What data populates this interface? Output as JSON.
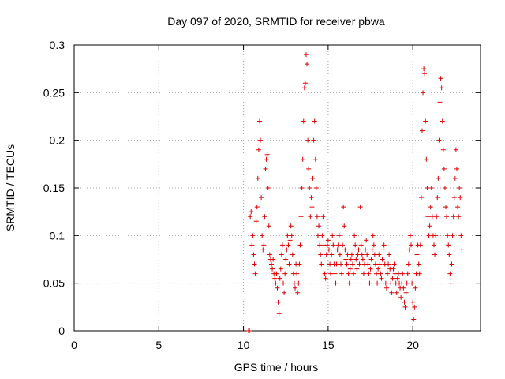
{
  "chart_data": {
    "type": "scatter",
    "title": "Day 097 of 2020, SRMTID for receiver pbwa",
    "xlabel": "GPS time / hours",
    "ylabel": "SRMTID / TECUs",
    "xlim": [
      0,
      24
    ],
    "ylim": [
      0,
      0.3
    ],
    "xticks": [
      0,
      5,
      10,
      15,
      20
    ],
    "xtick_labels": [
      "0",
      "5",
      "10",
      "15",
      "20"
    ],
    "yticks": [
      0,
      0.05,
      0.1,
      0.15,
      0.2,
      0.25,
      0.3
    ],
    "ytick_labels": [
      "0",
      "0.05",
      "0.1",
      "0.15",
      "0.2",
      "0.25",
      "0.3"
    ],
    "grid": true,
    "marker": "+",
    "color": "#e00000",
    "series": [
      {
        "name": "SRMTID",
        "points": [
          [
            10.3,
            0.0
          ],
          [
            10.35,
            0.0
          ],
          [
            10.4,
            0.12
          ],
          [
            10.45,
            0.125
          ],
          [
            10.5,
            0.09
          ],
          [
            10.55,
            0.1
          ],
          [
            10.6,
            0.08
          ],
          [
            10.65,
            0.07
          ],
          [
            10.7,
            0.06
          ],
          [
            10.75,
            0.115
          ],
          [
            10.8,
            0.13
          ],
          [
            10.85,
            0.16
          ],
          [
            10.9,
            0.19
          ],
          [
            10.95,
            0.22
          ],
          [
            11.0,
            0.2
          ],
          [
            11.05,
            0.14
          ],
          [
            11.1,
            0.1
          ],
          [
            11.15,
            0.085
          ],
          [
            11.2,
            0.09
          ],
          [
            11.25,
            0.12
          ],
          [
            11.3,
            0.17
          ],
          [
            11.35,
            0.18
          ],
          [
            11.4,
            0.185
          ],
          [
            11.45,
            0.15
          ],
          [
            11.5,
            0.11
          ],
          [
            11.55,
            0.08
          ],
          [
            11.6,
            0.075
          ],
          [
            11.65,
            0.07
          ],
          [
            11.7,
            0.065
          ],
          [
            11.75,
            0.075
          ],
          [
            11.8,
            0.06
          ],
          [
            11.85,
            0.055
          ],
          [
            11.9,
            0.05
          ],
          [
            11.95,
            0.06
          ],
          [
            12.0,
            0.045
          ],
          [
            12.05,
            0.03
          ],
          [
            12.1,
            0.018
          ],
          [
            12.15,
            0.055
          ],
          [
            12.2,
            0.065
          ],
          [
            12.25,
            0.08
          ],
          [
            12.3,
            0.09
          ],
          [
            12.35,
            0.05
          ],
          [
            12.4,
            0.04
          ],
          [
            12.45,
            0.06
          ],
          [
            12.5,
            0.075
          ],
          [
            12.55,
            0.085
          ],
          [
            12.6,
            0.1
          ],
          [
            12.65,
            0.09
          ],
          [
            12.7,
            0.07
          ],
          [
            12.75,
            0.095
          ],
          [
            12.8,
            0.11
          ],
          [
            12.85,
            0.1
          ],
          [
            12.9,
            0.08
          ],
          [
            12.95,
            0.06
          ],
          [
            13.0,
            0.05
          ],
          [
            13.05,
            0.045
          ],
          [
            13.1,
            0.07
          ],
          [
            13.15,
            0.06
          ],
          [
            13.2,
            0.04
          ],
          [
            13.25,
            0.05
          ],
          [
            13.3,
            0.07
          ],
          [
            13.35,
            0.09
          ],
          [
            13.4,
            0.12
          ],
          [
            13.45,
            0.15
          ],
          [
            13.5,
            0.18
          ],
          [
            13.55,
            0.22
          ],
          [
            13.6,
            0.255
          ],
          [
            13.65,
            0.26
          ],
          [
            13.7,
            0.29
          ],
          [
            13.75,
            0.28
          ],
          [
            13.8,
            0.2
          ],
          [
            13.85,
            0.17
          ],
          [
            13.9,
            0.15
          ],
          [
            13.95,
            0.12
          ],
          [
            14.0,
            0.14
          ],
          [
            14.05,
            0.13
          ],
          [
            14.1,
            0.16
          ],
          [
            14.15,
            0.2
          ],
          [
            14.2,
            0.22
          ],
          [
            14.25,
            0.18
          ],
          [
            14.3,
            0.15
          ],
          [
            14.35,
            0.12
          ],
          [
            14.4,
            0.1
          ],
          [
            14.45,
            0.11
          ],
          [
            14.5,
            0.09
          ],
          [
            14.55,
            0.08
          ],
          [
            14.6,
            0.07
          ],
          [
            14.65,
            0.1
          ],
          [
            14.7,
            0.12
          ],
          [
            14.75,
            0.09
          ],
          [
            14.8,
            0.06
          ],
          [
            14.85,
            0.055
          ],
          [
            14.9,
            0.08
          ],
          [
            14.95,
            0.09
          ],
          [
            15.0,
            0.095
          ],
          [
            15.05,
            0.085
          ],
          [
            15.1,
            0.07
          ],
          [
            15.15,
            0.06
          ],
          [
            15.2,
            0.08
          ],
          [
            15.25,
            0.1
          ],
          [
            15.3,
            0.09
          ],
          [
            15.35,
            0.07
          ],
          [
            15.4,
            0.06
          ],
          [
            15.45,
            0.05
          ],
          [
            15.5,
            0.07
          ],
          [
            15.55,
            0.085
          ],
          [
            15.6,
            0.09
          ],
          [
            15.65,
            0.1
          ],
          [
            15.7,
            0.08
          ],
          [
            15.75,
            0.07
          ],
          [
            15.8,
            0.06
          ],
          [
            15.85,
            0.09
          ],
          [
            15.9,
            0.13
          ],
          [
            15.95,
            0.11
          ],
          [
            16.0,
            0.085
          ],
          [
            16.05,
            0.075
          ],
          [
            16.1,
            0.07
          ],
          [
            16.15,
            0.08
          ],
          [
            16.2,
            0.06
          ],
          [
            16.25,
            0.05
          ],
          [
            16.3,
            0.065
          ],
          [
            16.35,
            0.075
          ],
          [
            16.4,
            0.08
          ],
          [
            16.45,
            0.07
          ],
          [
            16.5,
            0.06
          ],
          [
            16.55,
            0.1
          ],
          [
            16.6,
            0.09
          ],
          [
            16.65,
            0.075
          ],
          [
            16.7,
            0.065
          ],
          [
            16.75,
            0.08
          ],
          [
            16.8,
            0.085
          ],
          [
            16.85,
            0.07
          ],
          [
            16.9,
            0.13
          ],
          [
            16.95,
            0.09
          ],
          [
            17.0,
            0.08
          ],
          [
            17.05,
            0.075
          ],
          [
            17.1,
            0.06
          ],
          [
            17.15,
            0.07
          ],
          [
            17.2,
            0.085
          ],
          [
            17.25,
            0.095
          ],
          [
            17.3,
            0.08
          ],
          [
            17.35,
            0.07
          ],
          [
            17.4,
            0.06
          ],
          [
            17.45,
            0.05
          ],
          [
            17.5,
            0.065
          ],
          [
            17.55,
            0.075
          ],
          [
            17.6,
            0.085
          ],
          [
            17.65,
            0.1
          ],
          [
            17.7,
            0.09
          ],
          [
            17.75,
            0.08
          ],
          [
            17.8,
            0.07
          ],
          [
            17.85,
            0.06
          ],
          [
            17.9,
            0.05
          ],
          [
            17.95,
            0.065
          ],
          [
            18.0,
            0.08
          ],
          [
            18.05,
            0.07
          ],
          [
            18.1,
            0.06
          ],
          [
            18.15,
            0.055
          ],
          [
            18.2,
            0.075
          ],
          [
            18.25,
            0.085
          ],
          [
            18.3,
            0.09
          ],
          [
            18.35,
            0.07
          ],
          [
            18.4,
            0.05
          ],
          [
            18.45,
            0.045
          ],
          [
            18.5,
            0.06
          ],
          [
            18.55,
            0.07
          ],
          [
            18.6,
            0.08
          ],
          [
            18.65,
            0.065
          ],
          [
            18.7,
            0.05
          ],
          [
            18.75,
            0.04
          ],
          [
            18.8,
            0.055
          ],
          [
            18.85,
            0.065
          ],
          [
            18.9,
            0.07
          ],
          [
            18.95,
            0.06
          ],
          [
            19.0,
            0.05
          ],
          [
            19.05,
            0.04
          ],
          [
            19.1,
            0.055
          ],
          [
            19.15,
            0.06
          ],
          [
            19.2,
            0.05
          ],
          [
            19.25,
            0.045
          ],
          [
            19.3,
            0.035
          ],
          [
            19.35,
            0.05
          ],
          [
            19.4,
            0.06
          ],
          [
            19.45,
            0.045
          ],
          [
            19.5,
            0.03
          ],
          [
            19.55,
            0.025
          ],
          [
            19.6,
            0.04
          ],
          [
            19.65,
            0.05
          ],
          [
            19.7,
            0.06
          ],
          [
            19.75,
            0.07
          ],
          [
            19.8,
            0.085
          ],
          [
            19.85,
            0.1
          ],
          [
            19.9,
            0.09
          ],
          [
            19.95,
            0.05
          ],
          [
            20.0,
            0.03
          ],
          [
            20.05,
            0.012
          ],
          [
            20.1,
            0.025
          ],
          [
            20.15,
            0.045
          ],
          [
            20.2,
            0.06
          ],
          [
            20.25,
            0.08
          ],
          [
            20.3,
            0.09
          ],
          [
            20.35,
            0.07
          ],
          [
            20.4,
            0.06
          ],
          [
            20.45,
            0.09
          ],
          [
            20.5,
            0.14
          ],
          [
            20.55,
            0.21
          ],
          [
            20.6,
            0.25
          ],
          [
            20.65,
            0.275
          ],
          [
            20.7,
            0.27
          ],
          [
            20.75,
            0.22
          ],
          [
            20.8,
            0.18
          ],
          [
            20.85,
            0.15
          ],
          [
            20.9,
            0.12
          ],
          [
            20.95,
            0.1
          ],
          [
            21.0,
            0.11
          ],
          [
            21.05,
            0.13
          ],
          [
            21.1,
            0.15
          ],
          [
            21.15,
            0.12
          ],
          [
            21.2,
            0.1
          ],
          [
            21.25,
            0.09
          ],
          [
            21.3,
            0.08
          ],
          [
            21.35,
            0.1
          ],
          [
            21.4,
            0.12
          ],
          [
            21.45,
            0.14
          ],
          [
            21.5,
            0.16
          ],
          [
            21.55,
            0.2
          ],
          [
            21.6,
            0.24
          ],
          [
            21.65,
            0.265
          ],
          [
            21.7,
            0.255
          ],
          [
            21.75,
            0.22
          ],
          [
            21.8,
            0.19
          ],
          [
            21.85,
            0.17
          ],
          [
            21.9,
            0.15
          ],
          [
            21.95,
            0.13
          ],
          [
            22.0,
            0.12
          ],
          [
            22.05,
            0.1
          ],
          [
            22.1,
            0.09
          ],
          [
            22.15,
            0.08
          ],
          [
            22.2,
            0.06
          ],
          [
            22.25,
            0.05
          ],
          [
            22.3,
            0.07
          ],
          [
            22.35,
            0.1
          ],
          [
            22.4,
            0.12
          ],
          [
            22.45,
            0.14
          ],
          [
            22.5,
            0.16
          ],
          [
            22.55,
            0.19
          ],
          [
            22.6,
            0.17
          ],
          [
            22.65,
            0.13
          ],
          [
            22.7,
            0.12
          ],
          [
            22.75,
            0.15
          ],
          [
            22.8,
            0.14
          ],
          [
            22.85,
            0.1
          ],
          [
            22.9,
            0.085
          ]
        ]
      }
    ]
  }
}
